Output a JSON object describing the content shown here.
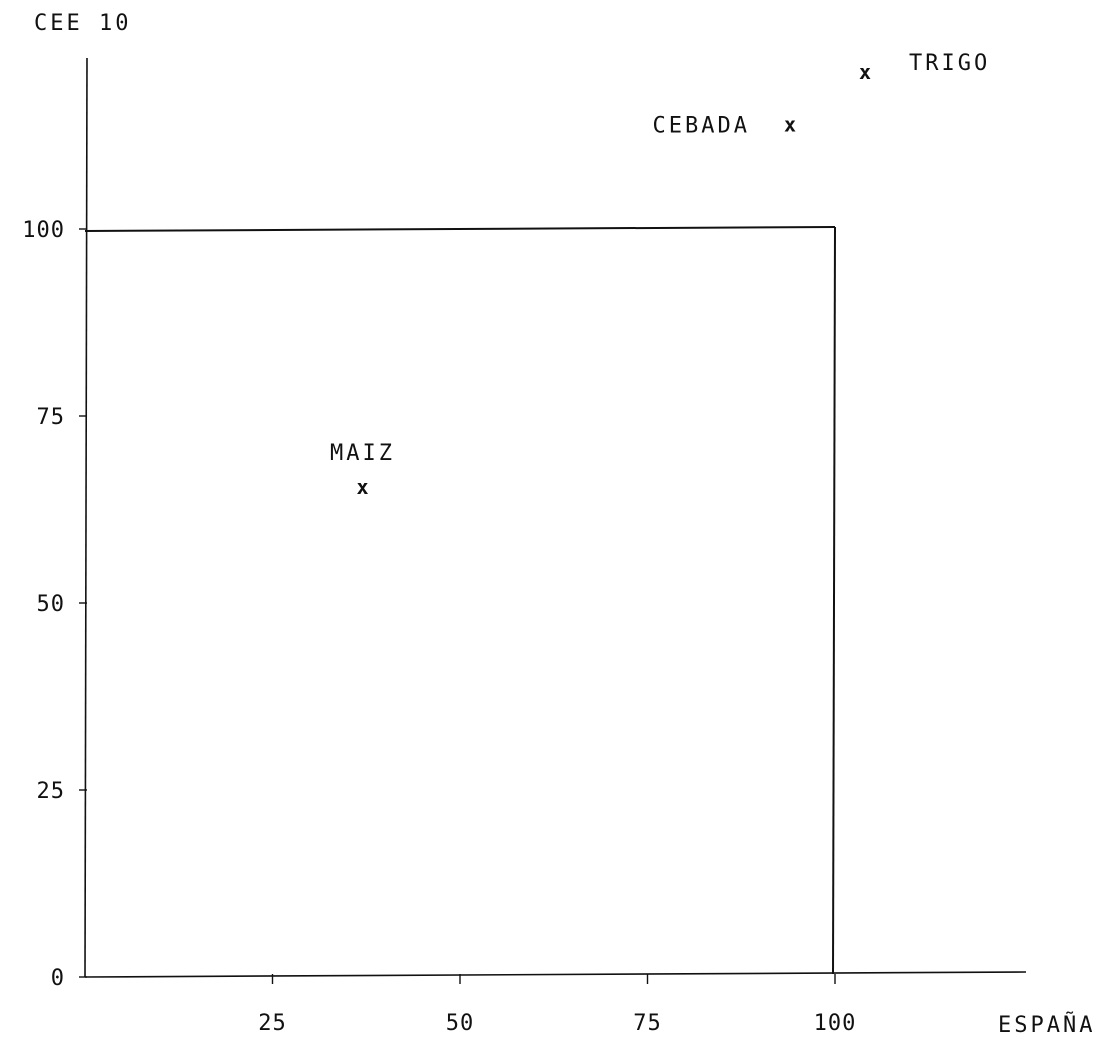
{
  "chart_data": {
    "type": "scatter",
    "xlabel": "ESPAÑA",
    "ylabel": "CEE 10",
    "xlim": [
      0,
      125
    ],
    "ylim": [
      0,
      125
    ],
    "x_ticks": [
      25,
      50,
      75,
      100
    ],
    "y_ticks": [
      0,
      25,
      50,
      75,
      100
    ],
    "grid": false,
    "reference_box": {
      "x": [
        0,
        100
      ],
      "y": [
        0,
        100
      ]
    },
    "points": [
      {
        "label": "MAIZ",
        "x": 37,
        "y": 65.5,
        "label_side": "above"
      },
      {
        "label": "CEBADA",
        "x": 94,
        "y": 114,
        "label_side": "left"
      },
      {
        "label": "TRIGO",
        "x": 104,
        "y": 121,
        "label_side": "right"
      }
    ],
    "marker": "x",
    "colors": {
      "ink": "#111111",
      "background": "#ffffff"
    }
  }
}
